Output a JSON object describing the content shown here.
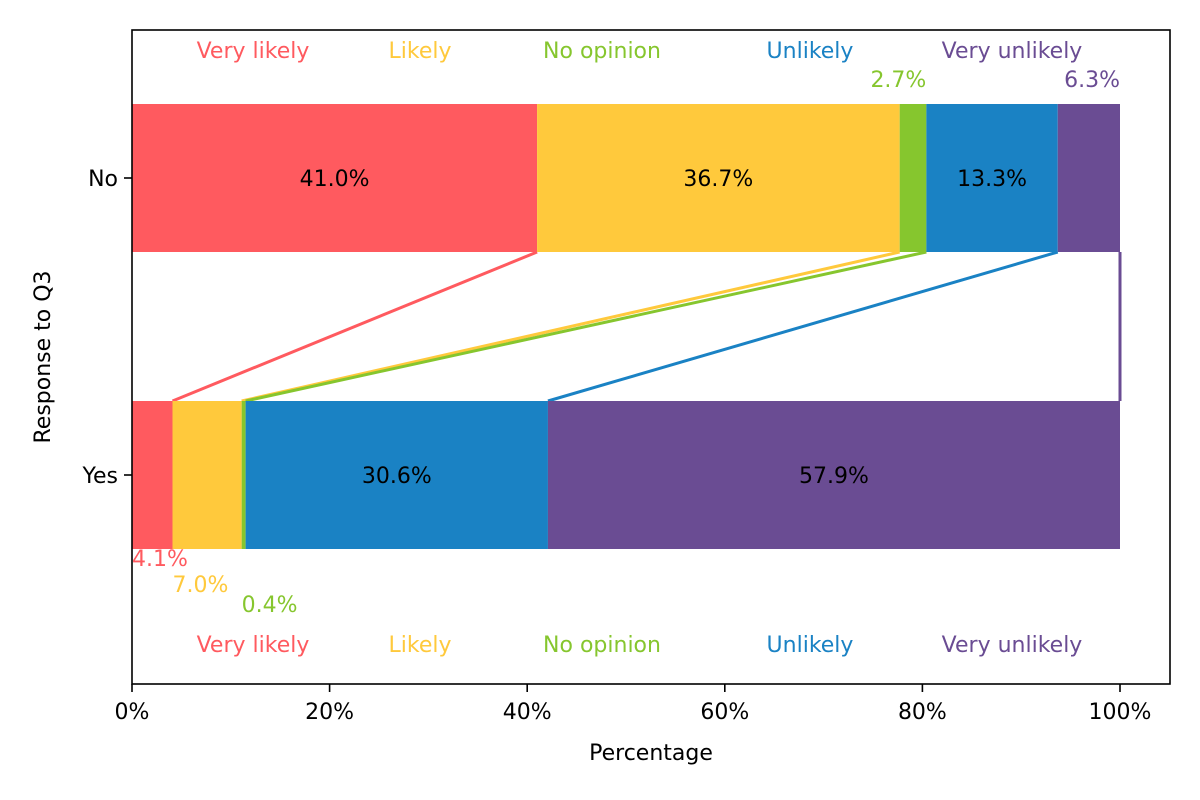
{
  "chart_data": {
    "type": "bar",
    "orientation": "horizontal",
    "stacked": true,
    "normalized_percent": true,
    "xlabel": "Percentage",
    "ylabel": "Response to Q3",
    "xlim": [
      0,
      105
    ],
    "x_ticks": [
      "0%",
      "20%",
      "40%",
      "60%",
      "80%",
      "100%"
    ],
    "categories": [
      "No",
      "Yes"
    ],
    "series": [
      {
        "name": "Very likely",
        "color": "#ff5a5f",
        "values": [
          41.0,
          4.1
        ],
        "labels": [
          "41.0%",
          "4.1%"
        ]
      },
      {
        "name": "Likely",
        "color": "#ffc93c",
        "values": [
          36.7,
          7.0
        ],
        "labels": [
          "36.7%",
          "7.0%"
        ]
      },
      {
        "name": "No opinion",
        "color": "#86c62e",
        "values": [
          2.7,
          0.4
        ],
        "labels": [
          "2.7%",
          "0.4%"
        ]
      },
      {
        "name": "Unlikely",
        "color": "#1a82c4",
        "values": [
          13.3,
          30.6
        ],
        "labels": [
          "13.3%",
          "30.6%"
        ]
      },
      {
        "name": "Very unlikely",
        "color": "#6a4c93",
        "values": [
          6.3,
          57.9
        ],
        "labels": [
          "6.3%",
          "57.9%"
        ]
      }
    ],
    "legend": {
      "placement": "top and bottom",
      "entries": [
        "Very likely",
        "Likely",
        "No opinion",
        "Unlikely",
        "Very unlikely"
      ]
    },
    "grid": false
  }
}
